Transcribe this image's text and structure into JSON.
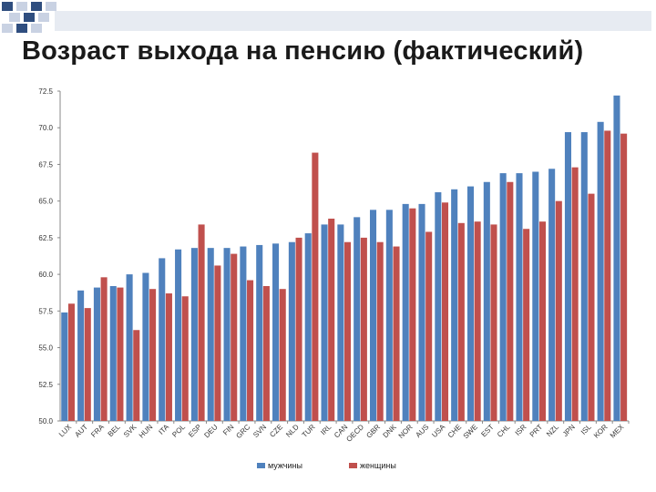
{
  "title": "Возраст выхода на пенсию (фактический)",
  "colors": {
    "men": "#4f81bd",
    "women": "#c0504d",
    "corner_dark": "#2f4e7f",
    "corner_light": "#c9d2e3"
  },
  "chart_data": {
    "type": "bar",
    "title": "",
    "xlabel": "",
    "ylabel": "",
    "ylim": [
      50.0,
      72.5
    ],
    "yticks": [
      "50.0",
      "52.5",
      "55.0",
      "57.5",
      "60.0",
      "62.5",
      "65.0",
      "67.5",
      "70.0",
      "72.5"
    ],
    "grid": false,
    "legend_position": "bottom",
    "categories": [
      "LUX",
      "AUT",
      "FRA",
      "BEL",
      "SVK",
      "HUN",
      "ITA",
      "POL",
      "ESP",
      "DEU",
      "FIN",
      "GRC",
      "SVN",
      "CZE",
      "NLD",
      "TUR",
      "IRL",
      "CAN",
      "OECD",
      "GBR",
      "DNK",
      "NOR",
      "AUS",
      "USA",
      "CHE",
      "SWE",
      "EST",
      "CHL",
      "ISR",
      "PRT",
      "NZL",
      "JPN",
      "ISL",
      "KOR",
      "MEX"
    ],
    "series": [
      {
        "name": "мужчины",
        "values": [
          57.4,
          58.9,
          59.1,
          59.2,
          60.0,
          60.1,
          61.1,
          61.7,
          61.8,
          61.8,
          61.8,
          61.9,
          62.0,
          62.1,
          62.2,
          62.8,
          63.4,
          63.4,
          63.9,
          64.4,
          64.4,
          64.8,
          64.8,
          65.6,
          65.8,
          66.0,
          66.3,
          66.9,
          66.9,
          67.0,
          67.2,
          69.7,
          69.7,
          70.4,
          72.2
        ]
      },
      {
        "name": "женщины",
        "values": [
          58.0,
          57.7,
          59.8,
          59.1,
          56.2,
          59.0,
          58.7,
          58.5,
          63.4,
          60.6,
          61.4,
          59.6,
          59.2,
          59.0,
          62.5,
          68.3,
          63.8,
          62.2,
          62.5,
          62.2,
          61.9,
          64.5,
          62.9,
          64.9,
          63.5,
          63.6,
          63.4,
          66.3,
          63.1,
          63.6,
          65.0,
          67.3,
          65.5,
          69.8,
          69.6
        ]
      }
    ]
  }
}
